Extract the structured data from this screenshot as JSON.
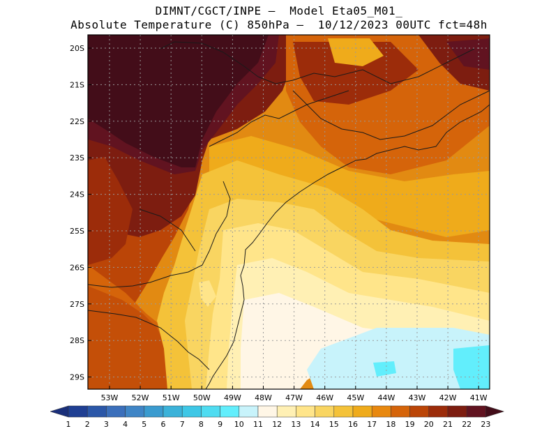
{
  "header": {
    "line1": "DIMNT/CGCT/INPE –  Model Eta05_M01_",
    "line2": "Absolute Temperature (C) 850hPa –  10/12/2023 00UTC fct=48h"
  },
  "map": {
    "variable": "Absolute Temperature",
    "units": "C",
    "level": "850hPa",
    "lat_labels": [
      "20S",
      "21S",
      "22S",
      "23S",
      "24S",
      "25S",
      "26S",
      "27S",
      "28S",
      "29S"
    ],
    "lon_labels": [
      "53W",
      "52W",
      "51W",
      "50W",
      "49W",
      "48W",
      "47W",
      "46W",
      "45W",
      "44W",
      "43W",
      "42W",
      "41W"
    ]
  },
  "colorbar": {
    "values": [
      "1",
      "2",
      "3",
      "4",
      "5",
      "6",
      "7",
      "8",
      "9",
      "10",
      "11",
      "12",
      "13",
      "14",
      "15",
      "16",
      "17",
      "18",
      "19",
      "20",
      "21",
      "22",
      "23"
    ],
    "colors": [
      "#1f3f93",
      "#2b57a8",
      "#3b6fbb",
      "#3f85c6",
      "#3a9bcf",
      "#3bb2d9",
      "#3ec7e6",
      "#4fdcf1",
      "#62eefc",
      "#c8f3fb",
      "#fff6e6",
      "#fff0b4",
      "#ffe58a",
      "#f9d561",
      "#f4c239",
      "#efab1b",
      "#e8880f",
      "#d5640a",
      "#bb4507",
      "#9c2c0a",
      "#7d1d10",
      "#611320",
      "#430d19"
    ],
    "min_color": "#1a2f7a",
    "max_color": "#350814"
  },
  "colors": {
    "coast": "#ffffff",
    "borders": "#1a1a1a",
    "grid": "#9a9a9a"
  }
}
